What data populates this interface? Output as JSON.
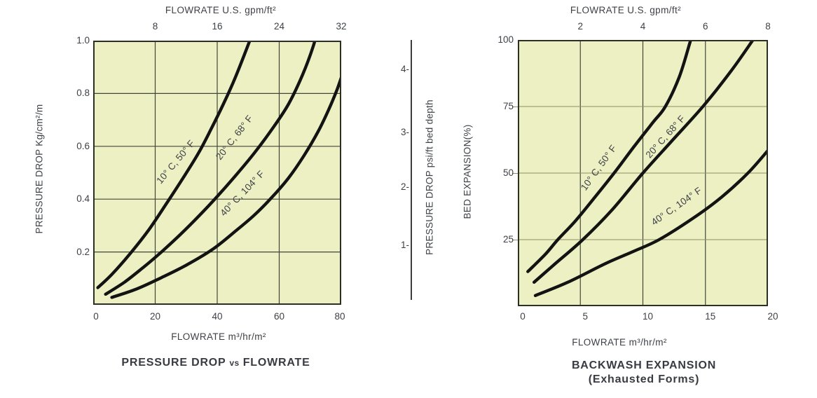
{
  "colors": {
    "page_bg": "#ffffff",
    "plot_bg": "#edf0c3",
    "grid_dark": "#43473a",
    "grid_light": "#8f9164",
    "plot_border": "#2c2f24",
    "curve": "#131313",
    "text": "#3e4146",
    "title_text": "#383b41",
    "psi_line": "#3c3c3c"
  },
  "psi_axis": {
    "label": "PRESSURE DROP psi/ft bed depth",
    "tick_labels": [
      "4-",
      "3-",
      "2-",
      "1-"
    ]
  },
  "chart_data": [
    {
      "type": "line",
      "title": "PRESSURE DROP vs FLOWRATE",
      "title_parts": [
        "PRESSURE DROP",
        "vs",
        "FLOWRATE"
      ],
      "top_axis": {
        "label": "FLOWRATE U.S. gpm/ft²",
        "tick_labels": [
          "8",
          "16",
          "24",
          "32"
        ],
        "tick_positions": [
          20,
          40,
          60,
          80
        ]
      },
      "bottom_axis": {
        "label": "FLOWRATE m³/hr/m²",
        "tick_labels": [
          "0",
          "20",
          "40",
          "60",
          "80"
        ],
        "tick_positions": [
          0,
          20,
          40,
          60,
          80
        ]
      },
      "left_axis": {
        "label": "PRESSURE DROP Kg/cm²/m",
        "tick_labels": [
          "1.0",
          "0.8",
          "0.6",
          "0.4",
          "0.2"
        ],
        "tick_positions": [
          1.0,
          0.8,
          0.6,
          0.4,
          0.2
        ]
      },
      "xlim": [
        0,
        80
      ],
      "ylim": [
        0,
        1.0
      ],
      "grid_x": [
        20,
        40,
        60
      ],
      "grid_y": [
        0.8,
        0.6,
        0.4,
        0.2
      ],
      "grid_y_light": false,
      "series": [
        {
          "name": "10° C, 50° F",
          "points": [
            [
              1.5,
              0.065
            ],
            [
              6,
              0.115
            ],
            [
              12,
              0.195
            ],
            [
              18,
              0.285
            ],
            [
              24,
              0.39
            ],
            [
              29,
              0.48
            ],
            [
              34,
              0.575
            ],
            [
              38,
              0.665
            ],
            [
              42,
              0.76
            ],
            [
              46,
              0.865
            ],
            [
              50.5,
              1.0
            ],
            [
              52,
              1.05
            ]
          ]
        },
        {
          "name": "20° C, 68° F",
          "points": [
            [
              4,
              0.04
            ],
            [
              10,
              0.085
            ],
            [
              16,
              0.14
            ],
            [
              22,
              0.2
            ],
            [
              28,
              0.265
            ],
            [
              34,
              0.335
            ],
            [
              40,
              0.41
            ],
            [
              46,
              0.49
            ],
            [
              52,
              0.575
            ],
            [
              58,
              0.67
            ],
            [
              63,
              0.76
            ],
            [
              67.5,
              0.87
            ],
            [
              71,
              0.98
            ],
            [
              72.5,
              1.05
            ]
          ]
        },
        {
          "name": "40° C, 104° F",
          "points": [
            [
              6,
              0.028
            ],
            [
              14,
              0.06
            ],
            [
              22,
              0.103
            ],
            [
              30,
              0.15
            ],
            [
              38.5,
              0.21
            ],
            [
              46,
              0.28
            ],
            [
              52,
              0.34
            ],
            [
              57.5,
              0.405
            ],
            [
              63,
              0.48
            ],
            [
              68,
              0.565
            ],
            [
              72.5,
              0.655
            ],
            [
              76,
              0.74
            ],
            [
              78.5,
              0.81
            ],
            [
              80,
              0.86
            ]
          ]
        }
      ]
    },
    {
      "type": "line",
      "title": "BACKWASH EXPANSION (Exhausted Forms)",
      "title_lines": [
        "BACKWASH EXPANSION",
        "(Exhausted Forms)"
      ],
      "top_axis": {
        "label": "FLOWRATE U.S. gpm/ft²",
        "tick_labels": [
          "2",
          "4",
          "6",
          "8"
        ],
        "tick_positions": [
          5,
          10,
          15,
          20
        ]
      },
      "bottom_axis": {
        "label": "FLOWRATE m³/hr/m²",
        "tick_labels": [
          "0",
          "5",
          "10",
          "15",
          "20"
        ],
        "tick_positions": [
          0,
          5,
          10,
          15,
          20
        ]
      },
      "left_axis": {
        "label": "BED EXPANSION(%)",
        "tick_labels": [
          "100",
          "75",
          "50",
          "25"
        ],
        "tick_positions": [
          100,
          75,
          50,
          25
        ]
      },
      "xlim": [
        0,
        20
      ],
      "ylim": [
        0,
        100
      ],
      "grid_x": [
        5,
        10,
        15
      ],
      "grid_y": [
        75,
        50,
        25
      ],
      "grid_y_light": true,
      "series": [
        {
          "name": "10° C, 50° F",
          "points": [
            [
              0.8,
              13
            ],
            [
              2.2,
              19.5
            ],
            [
              3.2,
              25
            ],
            [
              4.6,
              32
            ],
            [
              6,
              40
            ],
            [
              7.7,
              50
            ],
            [
              9.3,
              60
            ],
            [
              10.8,
              69
            ],
            [
              11.8,
              75
            ],
            [
              12.9,
              86
            ],
            [
              13.7,
              98
            ],
            [
              14,
              103
            ]
          ]
        },
        {
          "name": "20° C, 68° F",
          "points": [
            [
              1.3,
              9
            ],
            [
              3,
              16
            ],
            [
              5.2,
              25
            ],
            [
              7.5,
              36
            ],
            [
              10,
              50
            ],
            [
              12.4,
              62.5
            ],
            [
              14.8,
              75
            ],
            [
              17,
              88
            ],
            [
              18.8,
              100
            ],
            [
              19.2,
              103
            ]
          ]
        },
        {
          "name": "40° C, 104° F",
          "points": [
            [
              1.4,
              4
            ],
            [
              4,
              9
            ],
            [
              7,
              16
            ],
            [
              9.2,
              20.5
            ],
            [
              11.3,
              25
            ],
            [
              14,
              33
            ],
            [
              16.3,
              41
            ],
            [
              18.4,
              50
            ],
            [
              20,
              58.5
            ]
          ]
        }
      ]
    }
  ]
}
